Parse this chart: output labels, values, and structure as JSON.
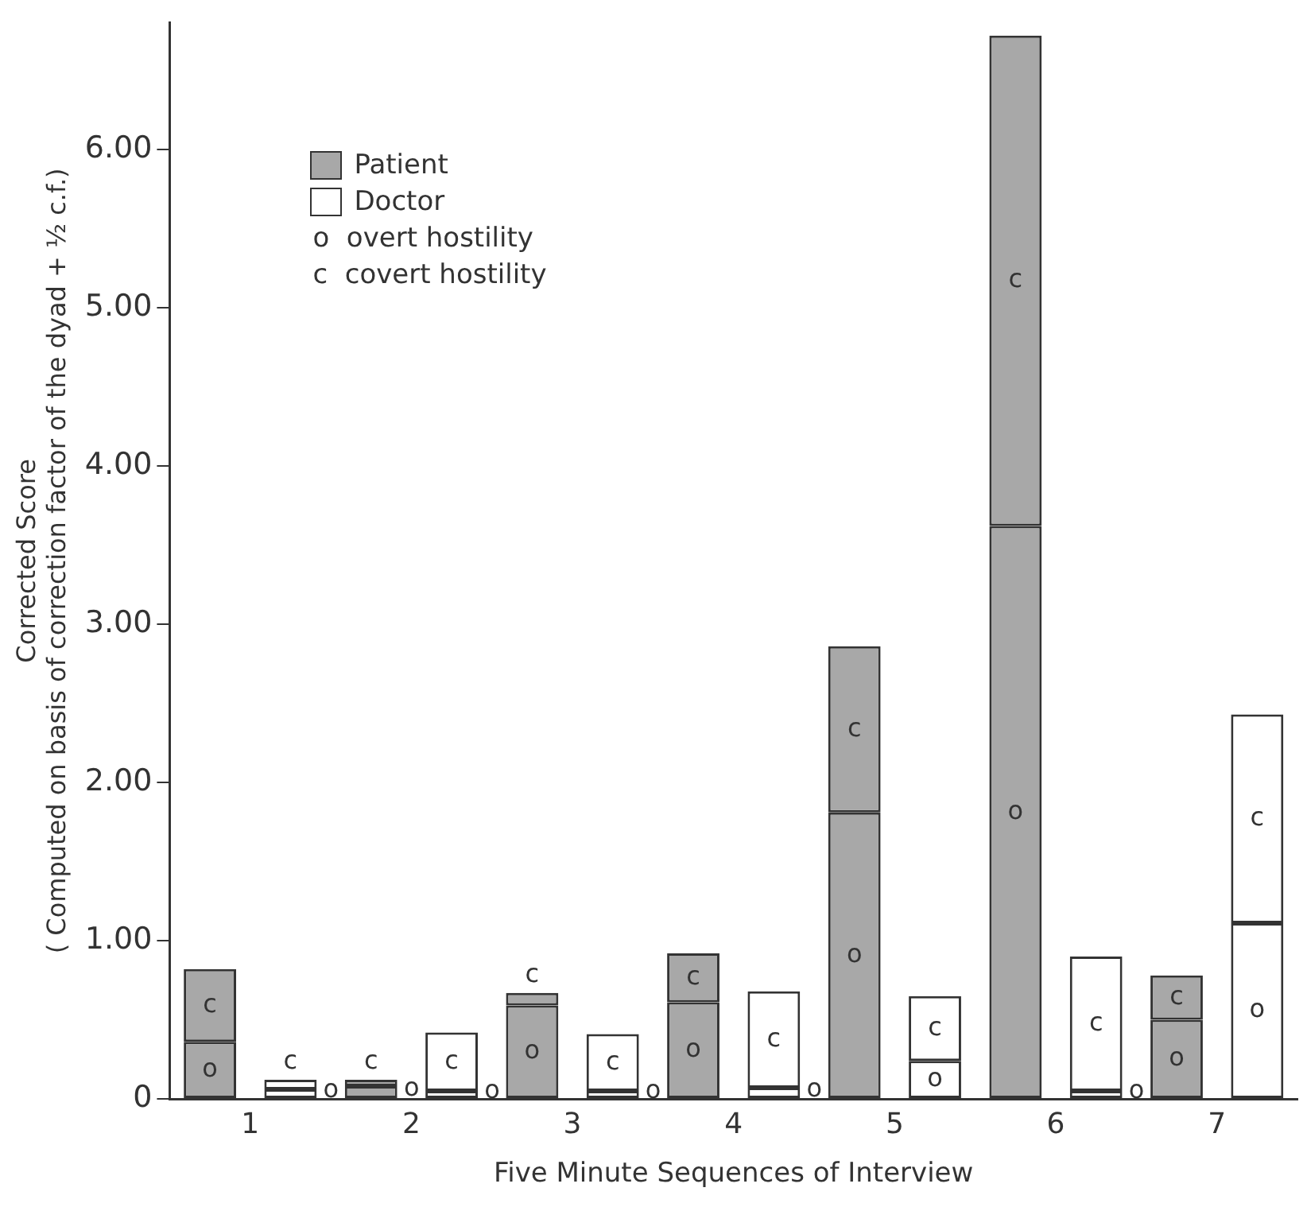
{
  "chart_data": {
    "type": "bar",
    "xlabel": "Five Minute Sequences of Interview",
    "ylabel": "Corrected Score\n( Computed on basis of correction factor of the dyad + ½ c.f.)",
    "categories": [
      "1",
      null,
      "2",
      null,
      "3",
      null,
      "4",
      null,
      "5",
      null,
      "6",
      null,
      "7",
      null
    ],
    "series": [
      {
        "colors": [
          "#a8a8a8",
          "#ffffff",
          "#a8a8a8",
          "#ffffff",
          "#a8a8a8",
          "#ffffff",
          "#a8a8a8",
          "#ffffff",
          "#a8a8a8",
          "#ffffff",
          "#a8a8a8",
          "#ffffff",
          "#a8a8a8",
          "#ffffff"
        ],
        "values": [
          0.36,
          0.06,
          0.08,
          0.05,
          0.59,
          0.05,
          0.61,
          0.07,
          1.81,
          0.24,
          3.62,
          0.05,
          0.5,
          1.11
        ],
        "value_labels": [
          "o",
          "o",
          "o",
          "o",
          "o",
          "o",
          "o",
          "o",
          "o",
          "o",
          "o",
          "o",
          "o",
          "o"
        ]
      },
      {
        "colors": [
          "#a8a8a8",
          "#ffffff",
          "#a8a8a8",
          "#ffffff",
          "#a8a8a8",
          "#ffffff",
          "#a8a8a8",
          "#ffffff",
          "#a8a8a8",
          "#ffffff",
          "#a8a8a8",
          "#ffffff",
          "#a8a8a8",
          "#ffffff"
        ],
        "values": [
          0.46,
          0.06,
          0.04,
          0.37,
          0.08,
          0.36,
          0.31,
          0.61,
          1.05,
          0.41,
          3.1,
          0.85,
          0.28,
          1.32
        ],
        "value_labels": [
          "c",
          "c",
          "c",
          "c",
          "c",
          "c",
          "c",
          "c",
          "c",
          "c",
          "c",
          "c",
          "c",
          "c"
        ]
      }
    ],
    "stacked": true,
    "ylim": [
      0,
      6.8
    ],
    "yticks": [
      {
        "value": 0,
        "label": "0"
      },
      {
        "value": 1,
        "label": "1.00"
      },
      {
        "value": 2,
        "label": "2.00"
      },
      {
        "value": 3,
        "label": "3.00"
      },
      {
        "value": 4,
        "label": "4.00"
      },
      {
        "value": 5,
        "label": "5.00"
      },
      {
        "value": 6,
        "label": "6.00"
      }
    ],
    "grid": false,
    "annotations": [
      "Patient",
      "Doctor",
      "o  overt hostility",
      "c  covert hostility"
    ]
  }
}
